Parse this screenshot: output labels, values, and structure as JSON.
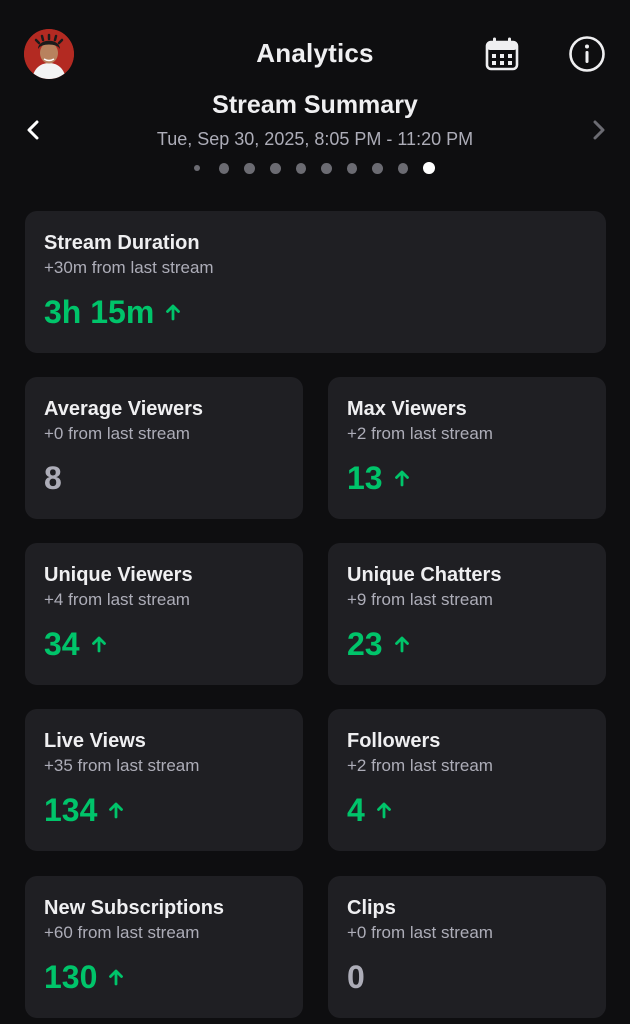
{
  "header": {
    "title": "Analytics",
    "avatar_icon": "user-avatar",
    "calendar_icon": "calendar-icon",
    "info_icon": "info-icon"
  },
  "summary": {
    "title": "Stream Summary",
    "date_range": "Tue, Sep 30, 2025, 8:05 PM - 11:20 PM",
    "page_count": 10,
    "active_page": 10,
    "prev_icon": "chevron-left-icon",
    "next_icon": "chevron-right-icon"
  },
  "colors": {
    "background": "#0e0e10",
    "card": "#1f1f23",
    "positive": "#00c46a",
    "neutral": "#adadb8"
  },
  "cards": {
    "stream_duration": {
      "title": "Stream Duration",
      "sub": "+30m from last stream",
      "value": "3h 15m",
      "trend": "up"
    },
    "average_viewers": {
      "title": "Average Viewers",
      "sub": "+0 from last stream",
      "value": "8",
      "trend": "none"
    },
    "max_viewers": {
      "title": "Max Viewers",
      "sub": "+2 from last stream",
      "value": "13",
      "trend": "up"
    },
    "unique_viewers": {
      "title": "Unique Viewers",
      "sub": "+4 from last stream",
      "value": "34",
      "trend": "up"
    },
    "unique_chatters": {
      "title": "Unique Chatters",
      "sub": "+9 from last stream",
      "value": "23",
      "trend": "up"
    },
    "live_views": {
      "title": "Live Views",
      "sub": "+35 from last stream",
      "value": "134",
      "trend": "up"
    },
    "followers": {
      "title": "Followers",
      "sub": "+2 from last stream",
      "value": "4",
      "trend": "up"
    },
    "new_subscriptions": {
      "title": "New Subscriptions",
      "sub": "+60 from last stream",
      "value": "130",
      "trend": "up"
    },
    "clips": {
      "title": "Clips",
      "sub": "+0 from last stream",
      "value": "0",
      "trend": "none"
    }
  }
}
